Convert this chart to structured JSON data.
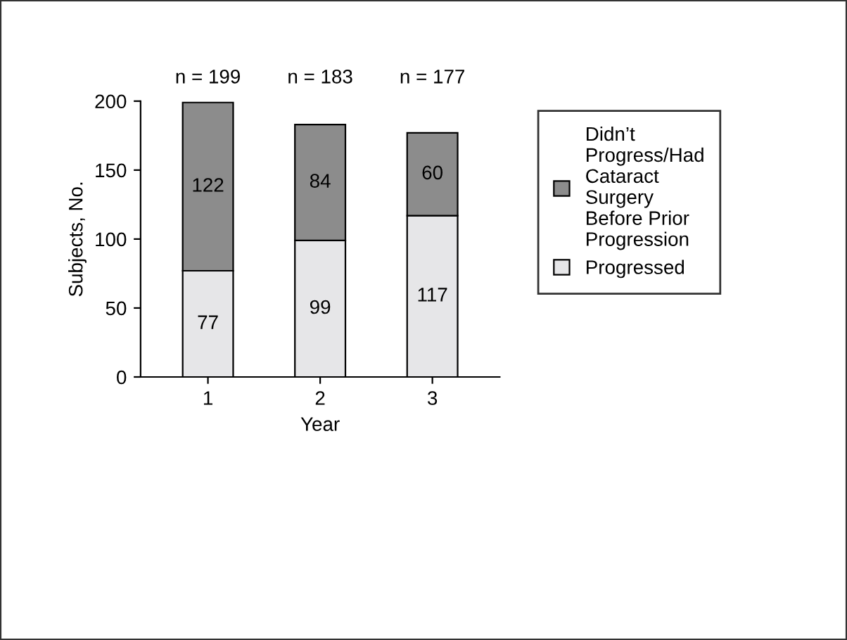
{
  "chart_data": {
    "type": "bar",
    "stacked": true,
    "xlabel": "Year",
    "ylabel": "Subjects, No.",
    "categories": [
      "1",
      "2",
      "3"
    ],
    "series": [
      {
        "name": "Progressed",
        "color": "#e6e6e8",
        "values": [
          77,
          99,
          117
        ]
      },
      {
        "name": "Didn’t\nProgress/Had\nCataract\nSurgery\nBefore Prior\nProgression",
        "color": "#8c8c8c",
        "values": [
          122,
          84,
          60
        ]
      }
    ],
    "ylim": [
      0,
      200
    ],
    "yticks": [
      0,
      50,
      100,
      150,
      200
    ],
    "data_labels": true,
    "totals": [
      "n = 199",
      "n = 183",
      "n = 177"
    ],
    "legend": "top right",
    "grid": false
  }
}
